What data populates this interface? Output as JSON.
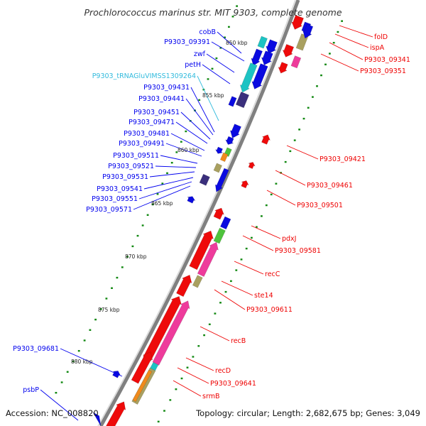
{
  "title": "Prochlorococcus marinus str. MIT 9303, complete genome",
  "footer": {
    "accession": "Accession: NC_008820",
    "topology": "Topology: circular; Length: 2,682,675 bp; Genes: 3,049"
  },
  "colors": {
    "plus_strand": "#0000ee",
    "minus_strand": "#ee0000",
    "trna_label": "#33bbdd",
    "tick_dots": "#118811",
    "backbone": "#808080",
    "cds_blue": "#0a0ae0",
    "cds_red": "#ee0a0a",
    "cds_magenta": "#ee3b9b",
    "cds_cyan": "#1dc3c3",
    "cds_green": "#4ec33c",
    "cds_purple": "#3a2f7c",
    "cds_olive": "#a9a060",
    "cds_orange": "#f08a1c"
  },
  "scale_ticks": [
    "850 kbp",
    "855 kbp",
    "860 kbp",
    "865 kbp",
    "870 kbp",
    "875 kbp",
    "880 kbp"
  ],
  "left_labels": [
    {
      "text": "cobB",
      "type": "cds"
    },
    {
      "text": "P9303_09391",
      "type": "cds"
    },
    {
      "text": "zwf",
      "type": "cds"
    },
    {
      "text": "petH",
      "type": "cds"
    },
    {
      "text": "P9303_tRNAGluVIMSS1309264",
      "type": "trna"
    },
    {
      "text": "P9303_09431",
      "type": "cds"
    },
    {
      "text": "P9303_09441",
      "type": "cds"
    },
    {
      "text": "P9303_09451",
      "type": "cds"
    },
    {
      "text": "P9303_09471",
      "type": "cds"
    },
    {
      "text": "P9303_09481",
      "type": "cds"
    },
    {
      "text": "P9303_09491",
      "type": "cds"
    },
    {
      "text": "P9303_09511",
      "type": "cds"
    },
    {
      "text": "P9303_09521",
      "type": "cds"
    },
    {
      "text": "P9303_09531",
      "type": "cds"
    },
    {
      "text": "P9303_09541",
      "type": "cds"
    },
    {
      "text": "P9303_09551",
      "type": "cds"
    },
    {
      "text": "P9303_09571",
      "type": "cds"
    },
    {
      "text": "P9303_09681",
      "type": "cds"
    },
    {
      "text": "psbP",
      "type": "cds"
    }
  ],
  "right_labels": [
    {
      "text": "folD"
    },
    {
      "text": "ispA"
    },
    {
      "text": "P9303_09341"
    },
    {
      "text": "P9303_09351"
    },
    {
      "text": "P9303_09421"
    },
    {
      "text": "P9303_09461"
    },
    {
      "text": "P9303_09501"
    },
    {
      "text": "pdxJ"
    },
    {
      "text": "P9303_09581"
    },
    {
      "text": "recC"
    },
    {
      "text": "ste14"
    },
    {
      "text": "P9303_09611"
    },
    {
      "text": "recB"
    },
    {
      "text": "recD"
    },
    {
      "text": "P9303_09641"
    },
    {
      "text": "srmB"
    }
  ]
}
